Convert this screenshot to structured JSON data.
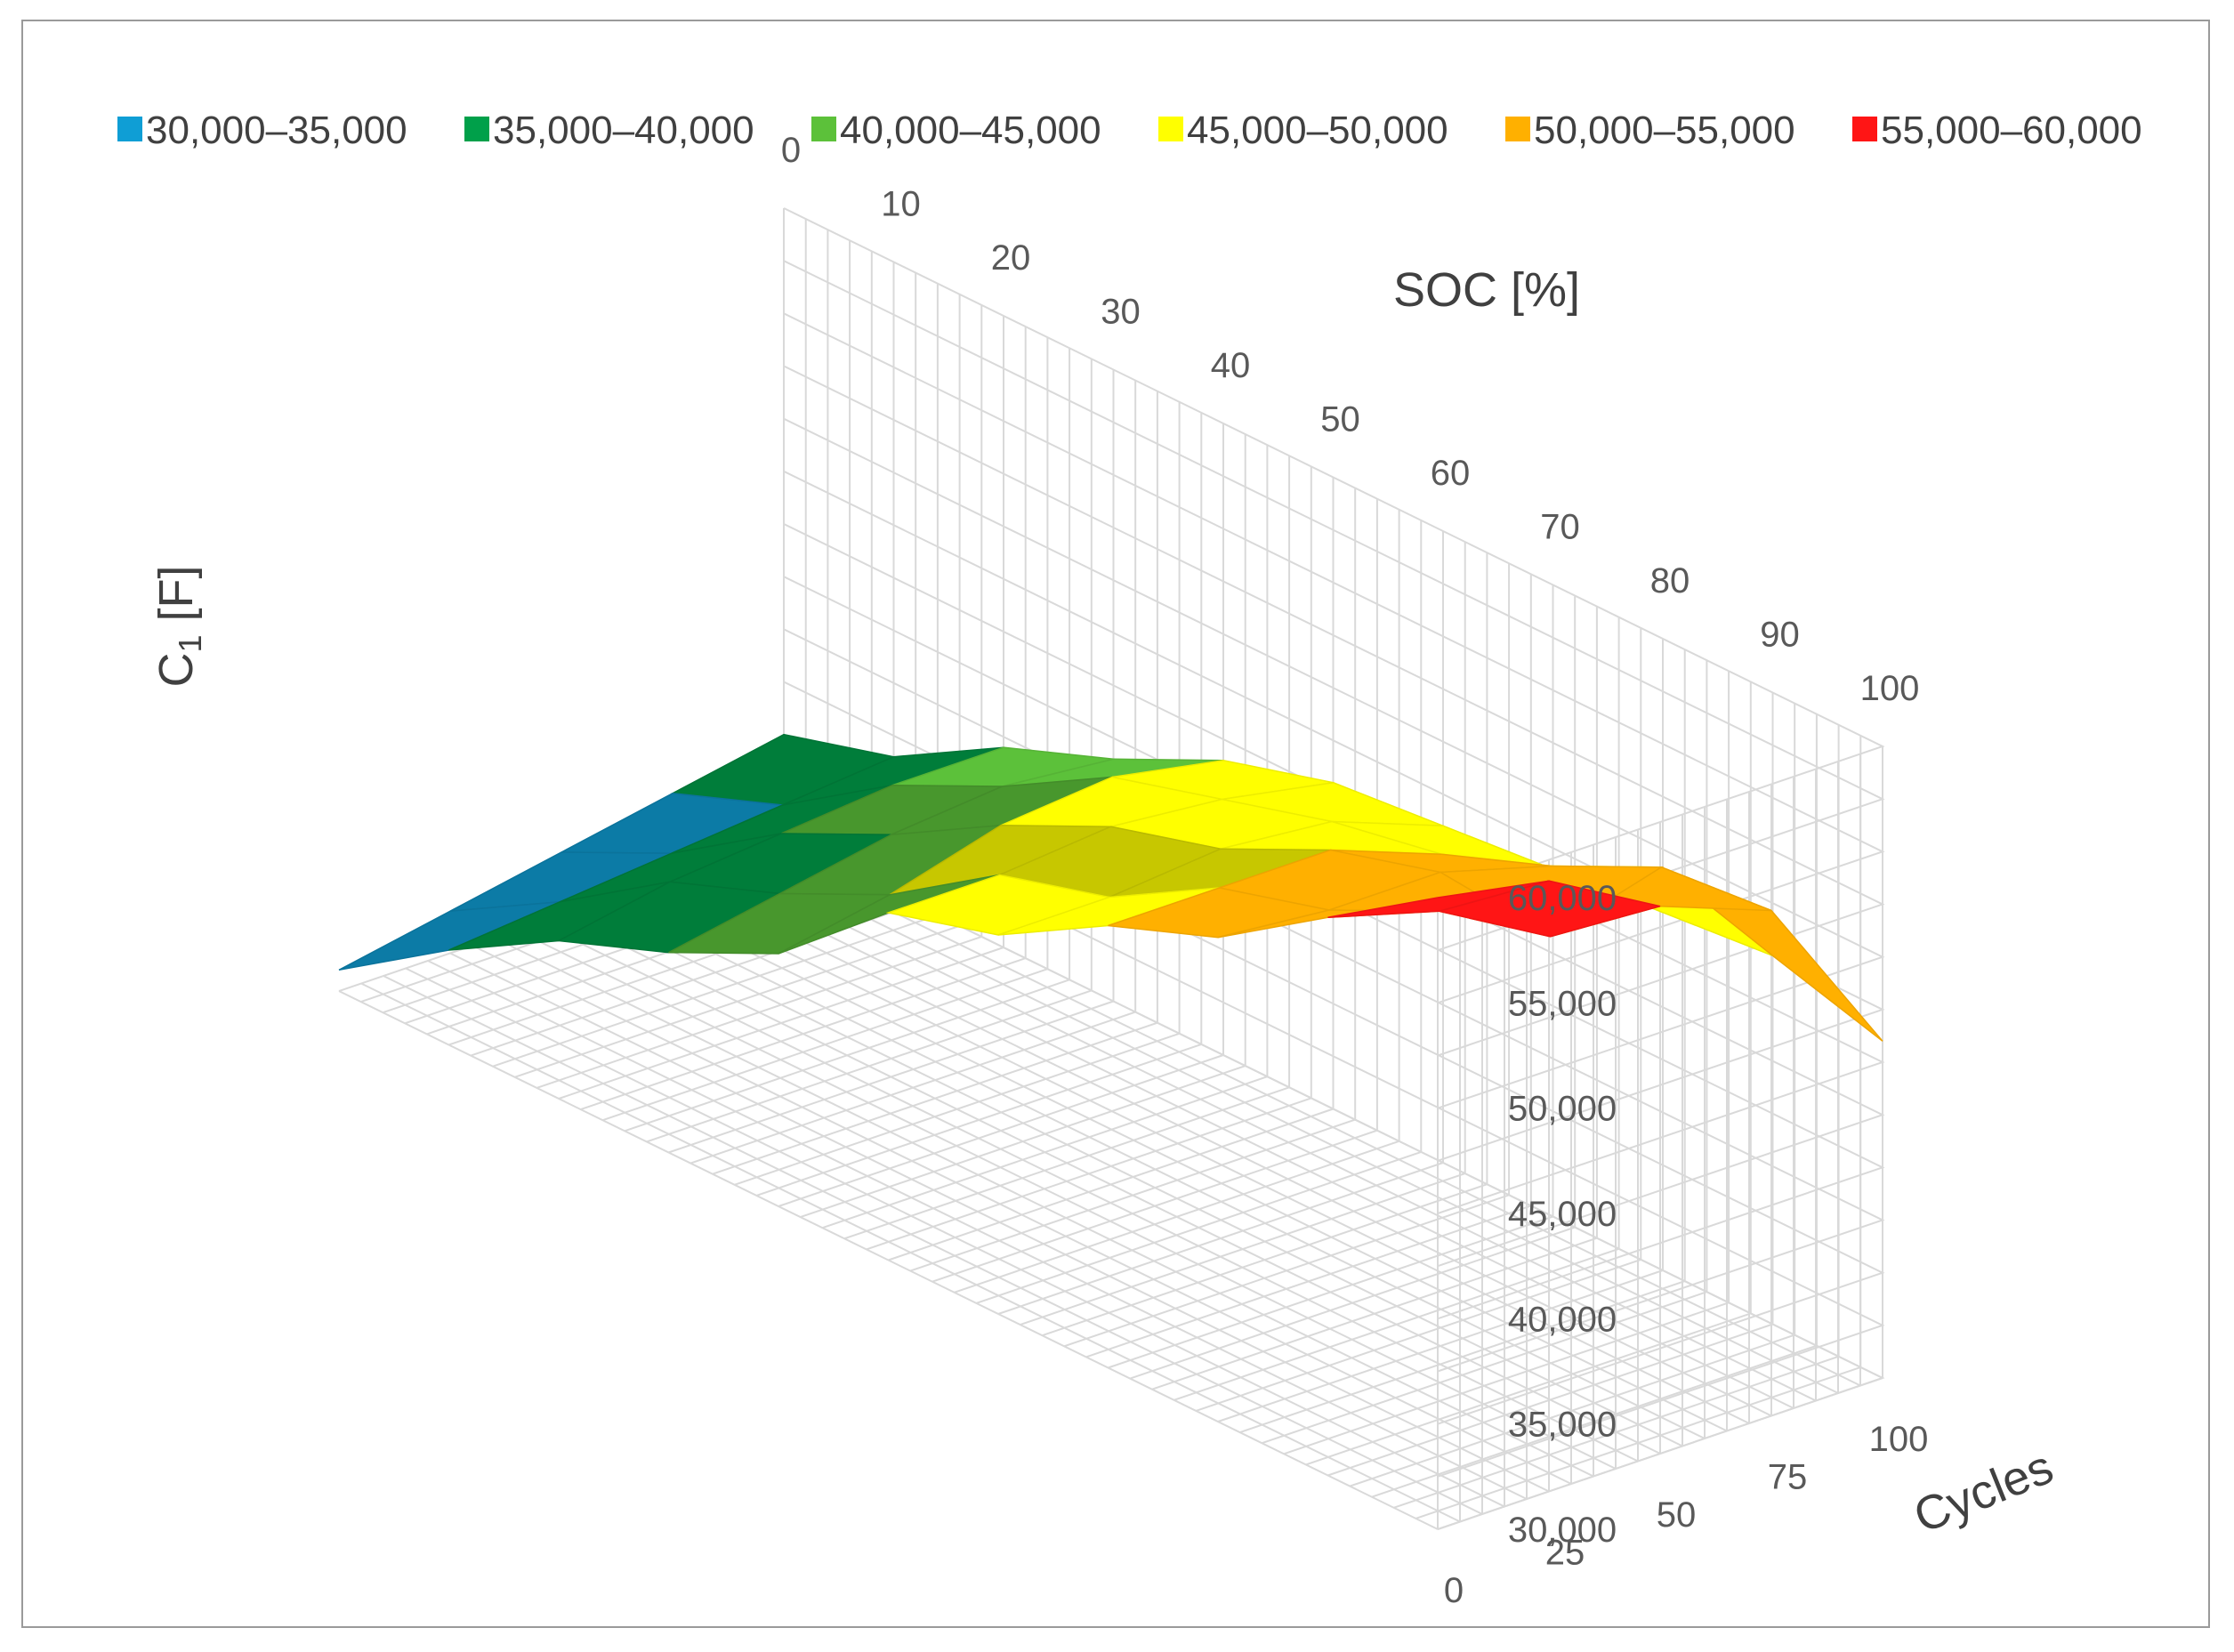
{
  "chart_data": {
    "type": "surface",
    "title": "",
    "legend": {
      "placement": "top",
      "entries": [
        {
          "label": "30,000–35,000",
          "color": "#0f9ed5"
        },
        {
          "label": "35,000–40,000",
          "color": "#00a04a"
        },
        {
          "label": "40,000–45,000",
          "color": "#5cc13a"
        },
        {
          "label": "45,000–50,000",
          "color": "#ffff00"
        },
        {
          "label": "50,000–55,000",
          "color": "#ffb000"
        },
        {
          "label": "55,000–60,000",
          "color": "#ff1515"
        }
      ]
    },
    "x_axis": {
      "title": "SOC [%]",
      "ticks": [
        "0",
        "10",
        "20",
        "30",
        "40",
        "50",
        "60",
        "70",
        "80",
        "90",
        "100"
      ],
      "values": [
        0,
        10,
        20,
        30,
        40,
        50,
        60,
        70,
        80,
        90,
        100
      ]
    },
    "y_axis": {
      "title": "Cycles",
      "ticks": [
        "0",
        "25",
        "50",
        "75",
        "100"
      ],
      "values": [
        0,
        25,
        50,
        75,
        100
      ]
    },
    "z_axis": {
      "title": "C",
      "title_subscript": "1",
      "title_suffix": " [F]",
      "ticks": [
        "30,000",
        "35,000",
        "40,000",
        "45,000",
        "50,000",
        "55,000",
        "60,000"
      ],
      "range": [
        30000,
        60000
      ]
    },
    "grid": true,
    "z_values": [
      [
        31000,
        34500,
        37500,
        39500,
        42000,
        46500,
        48000,
        51000,
        53000,
        56500,
        60000
      ],
      [
        32000,
        35000,
        38500,
        40500,
        43000,
        46500,
        48000,
        51000,
        52500,
        55000,
        59000
      ],
      [
        33000,
        35500,
        39000,
        41500,
        44500,
        47000,
        48500,
        51000,
        52500,
        52000,
        56000
      ],
      [
        34000,
        36000,
        39500,
        42000,
        45000,
        46500,
        48000,
        49000,
        51000,
        53500,
        54000
      ],
      [
        35000,
        36500,
        39500,
        41500,
        44000,
        45500,
        46000,
        46500,
        47000,
        47500,
        46000
      ]
    ]
  }
}
